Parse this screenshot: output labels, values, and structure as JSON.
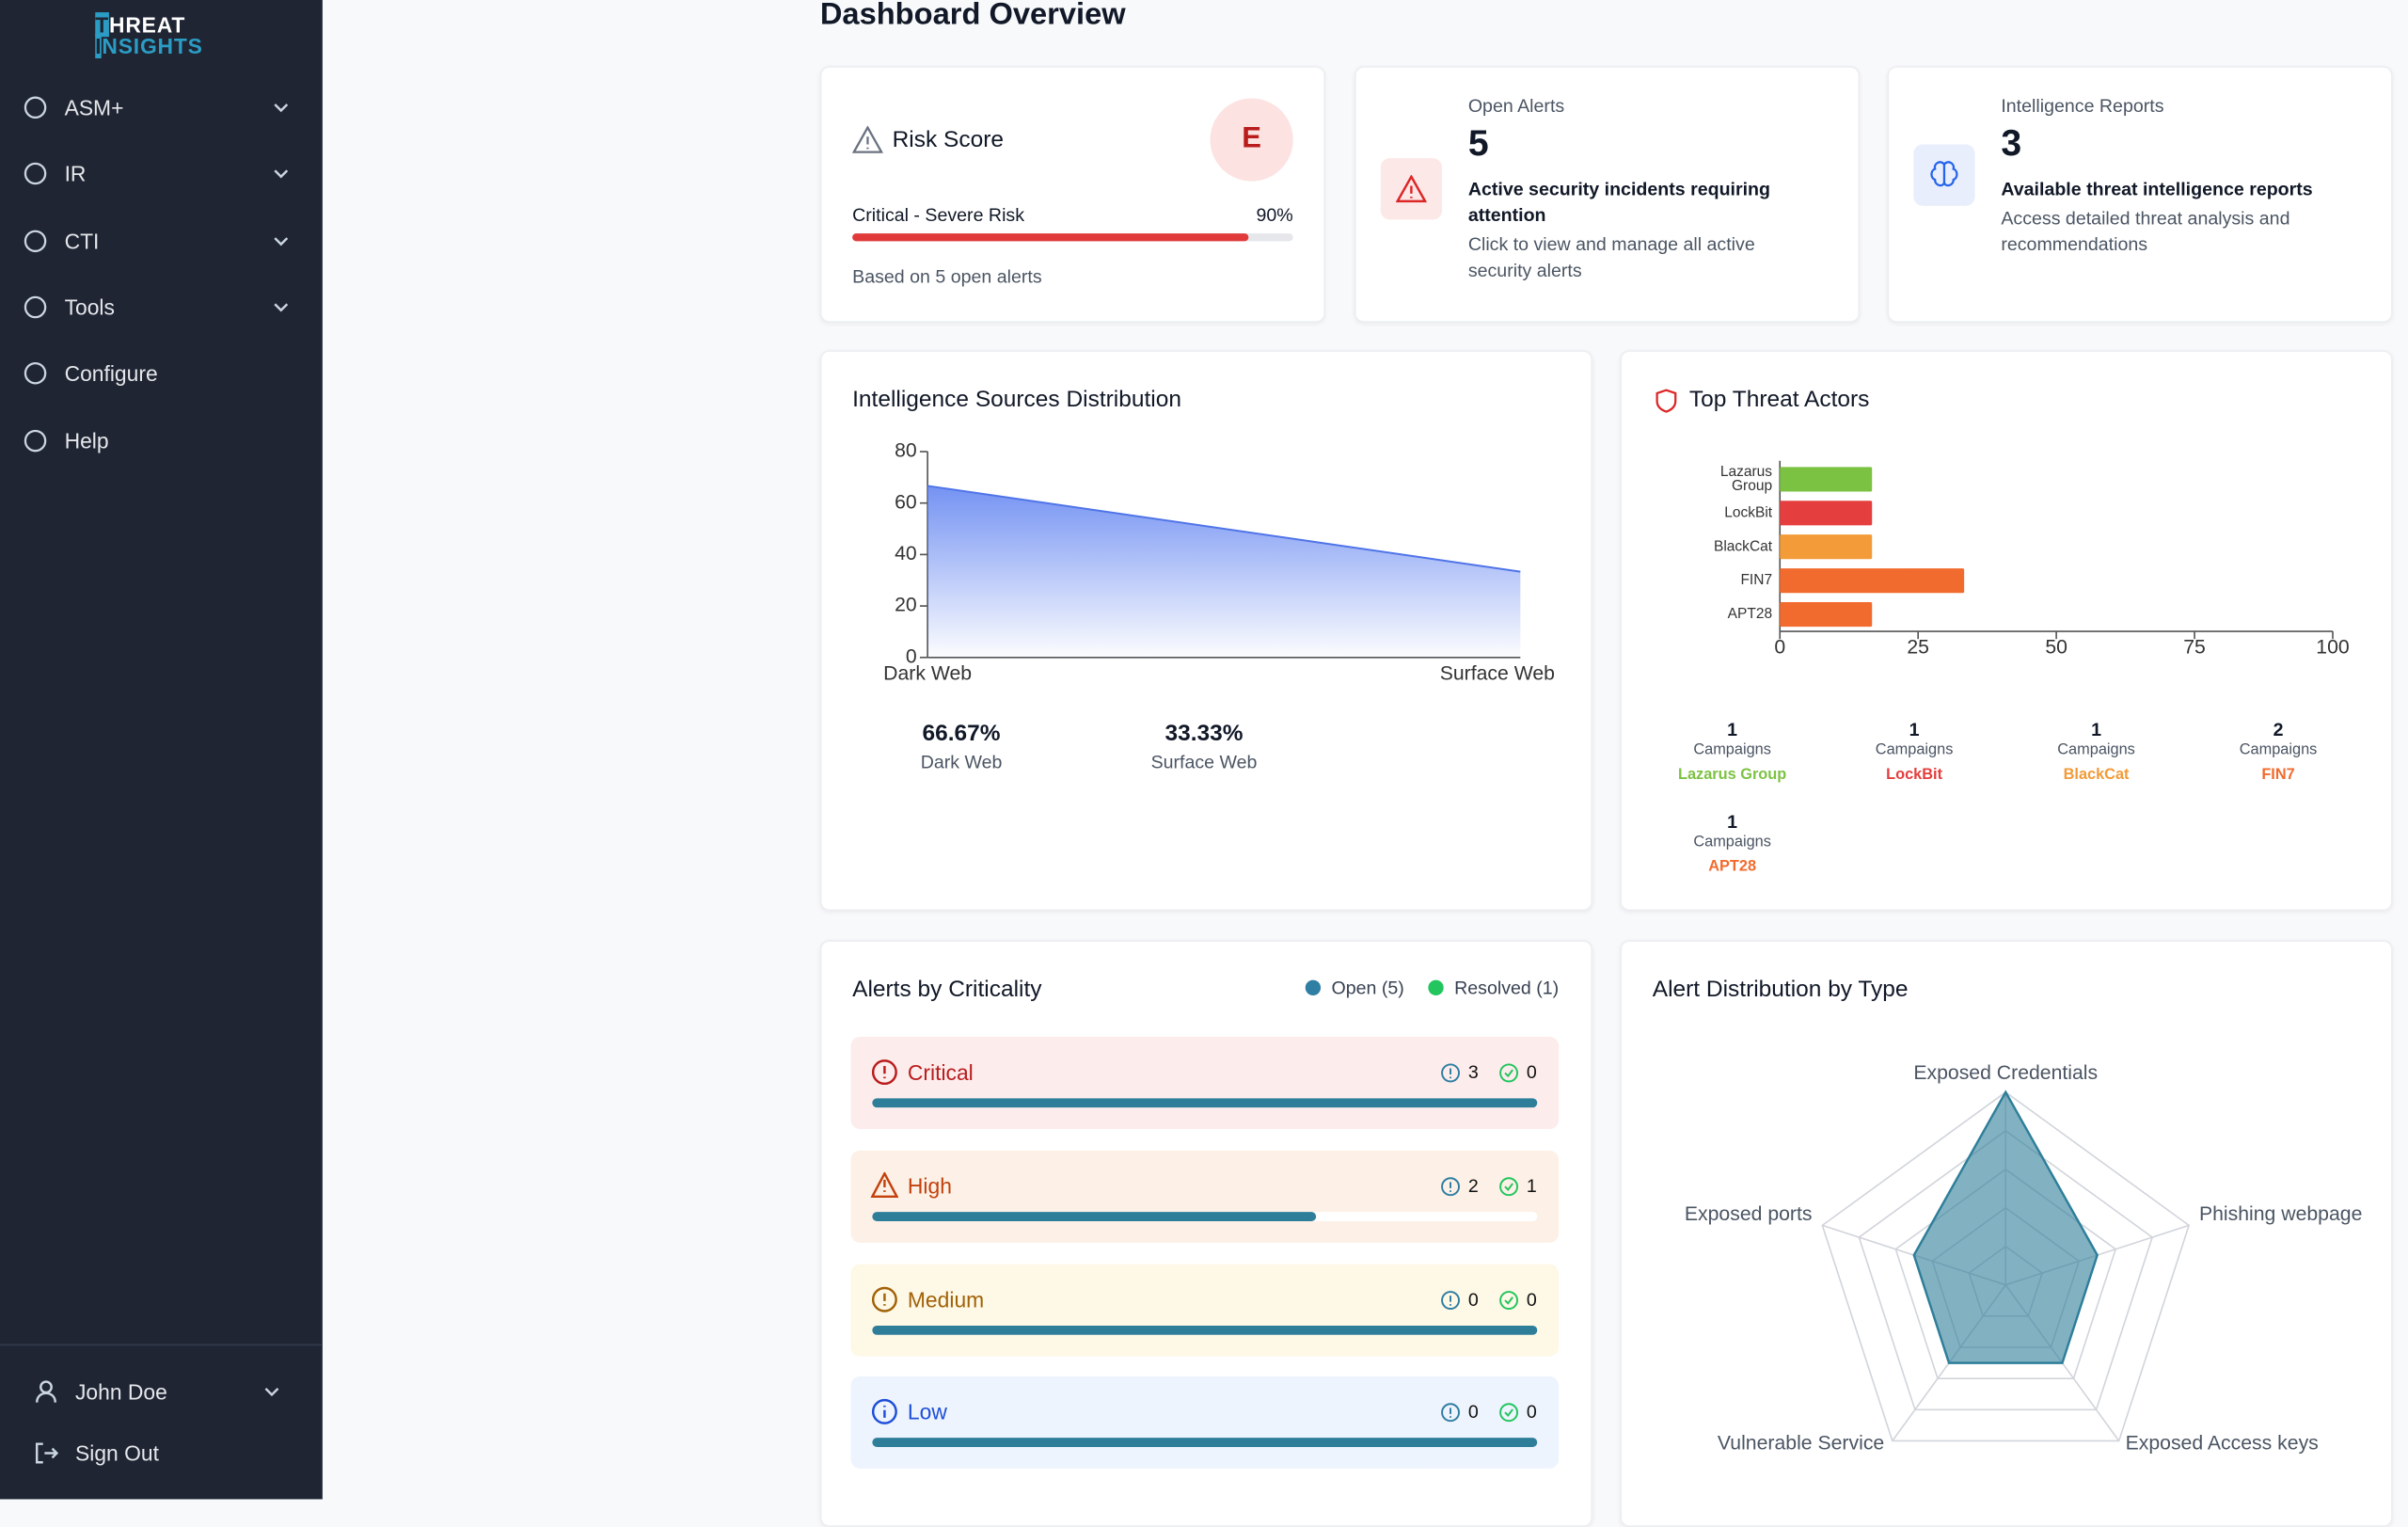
{
  "sidebar": {
    "logo_top": "THREAT",
    "logo_bottom": "INSIGHTS",
    "nav": [
      {
        "label": "ASM+",
        "expandable": true
      },
      {
        "label": "IR",
        "expandable": true
      },
      {
        "label": "CTI",
        "expandable": true
      },
      {
        "label": "Tools",
        "expandable": true
      },
      {
        "label": "Configure",
        "expandable": false
      },
      {
        "label": "Help",
        "expandable": false
      }
    ],
    "user": "John Doe",
    "sign_out": "Sign Out"
  },
  "header": {
    "title": "Dashboard Overview"
  },
  "risk_card": {
    "title": "Risk Score",
    "grade": "E",
    "level": "Critical - Severe Risk",
    "percent": 90,
    "percent_label": "90%",
    "note": "Based on 5 open alerts"
  },
  "alerts_card": {
    "label": "Open Alerts",
    "count": 5,
    "headline": "Active security incidents requiring attention",
    "description": "Click to view and manage all active security alerts"
  },
  "reports_card": {
    "label": "Intelligence Reports",
    "count": 3,
    "headline": "Available threat intelligence reports",
    "description": "Access detailed threat analysis and recommendations"
  },
  "sources_chart": {
    "type": "area",
    "title": "Intelligence Sources Distribution",
    "categories": [
      "Dark Web",
      "Surface Web"
    ],
    "values": [
      66.67,
      33.33
    ],
    "value_labels": [
      "66.67%",
      "33.33%"
    ],
    "color": "#4f74e8",
    "ylim": [
      0,
      80
    ],
    "yticks": [
      0,
      20,
      40,
      60,
      80
    ]
  },
  "actors_chart": {
    "type": "bar",
    "title": "Top Threat Actors",
    "categories": [
      "Lazarus Group",
      "LockBit",
      "BlackCat",
      "FIN7",
      "APT28"
    ],
    "values": [
      16.67,
      16.67,
      16.67,
      33.33,
      16.67
    ],
    "colors": [
      "#7cc242",
      "#e53e3e",
      "#f29b38",
      "#f26b2e",
      "#f26b2e"
    ],
    "xlim": [
      0,
      100
    ],
    "xticks": [
      0,
      25,
      50,
      75,
      100
    ],
    "campaigns": [
      1,
      1,
      1,
      2,
      1
    ],
    "campaign_unit": "Campaigns"
  },
  "criticality": {
    "title": "Alerts by Criticality",
    "legend": [
      {
        "name": "Open (5)",
        "color": "#2f7ea3"
      },
      {
        "name": "Resolved (1)",
        "color": "#22c55e"
      }
    ],
    "levels": [
      {
        "name": "Critical",
        "open": 3,
        "resolved": 0,
        "progress": 100,
        "color": "#b91c1c",
        "background": "#fdecec"
      },
      {
        "name": "High",
        "open": 2,
        "resolved": 1,
        "progress": 66.67,
        "color": "#c2410c",
        "background": "#fdf1e7"
      },
      {
        "name": "Medium",
        "open": 0,
        "resolved": 0,
        "progress": 100,
        "color": "#a16207",
        "background": "#fef8e6"
      },
      {
        "name": "Low",
        "open": 0,
        "resolved": 0,
        "progress": 100,
        "color": "#1d4ed8",
        "background": "#eef4fd"
      }
    ]
  },
  "radar_chart": {
    "type": "radar",
    "title": "Alert Distribution by Type",
    "categories": [
      "Exposed Credentials",
      "Phishing webpage",
      "Exposed Access keys",
      "Vulnerable Service",
      "Exposed ports"
    ],
    "values": [
      2,
      1,
      1,
      1,
      1
    ],
    "rlim": [
      0,
      2
    ],
    "color": "#2e7e9a"
  }
}
